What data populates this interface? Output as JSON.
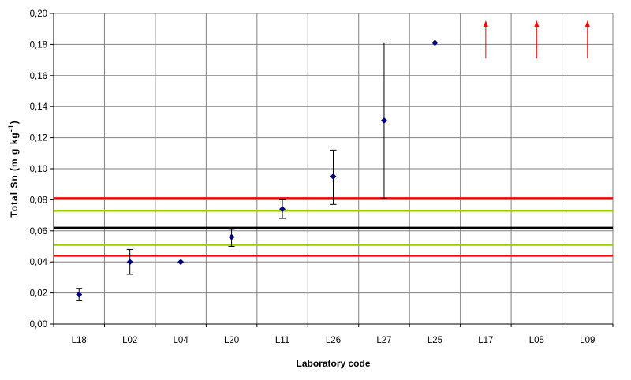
{
  "chart_data": {
    "type": "scatter",
    "xlabel": "Laboratory code",
    "ylabel": "Total Sn (m g kg",
    "ylabel_sup": "-1",
    "ylabel_close": ")",
    "ylim": [
      0,
      0.2
    ],
    "y_ticks": [
      "0,00",
      "0,02",
      "0,04",
      "0,06",
      "0,08",
      "0,10",
      "0,12",
      "0,14",
      "0,16",
      "0,18",
      "0,20"
    ],
    "y_tick_values": [
      0,
      0.02,
      0.04,
      0.06,
      0.08,
      0.1,
      0.12,
      0.14,
      0.16,
      0.18,
      0.2
    ],
    "grid": true,
    "categories": [
      "L18",
      "L02",
      "L04",
      "L20",
      "L11",
      "L26",
      "L27",
      "L25",
      "L17",
      "L05",
      "L09"
    ],
    "points": [
      {
        "lab": "L18",
        "value": 0.019,
        "low": 0.015,
        "high": 0.023
      },
      {
        "lab": "L02",
        "value": 0.04,
        "low": 0.032,
        "high": 0.048
      },
      {
        "lab": "L04",
        "value": 0.04,
        "low": null,
        "high": null
      },
      {
        "lab": "L20",
        "value": 0.056,
        "low": 0.05,
        "high": 0.061
      },
      {
        "lab": "L11",
        "value": 0.074,
        "low": 0.068,
        "high": 0.08
      },
      {
        "lab": "L26",
        "value": 0.095,
        "low": 0.077,
        "high": 0.112
      },
      {
        "lab": "L27",
        "value": 0.131,
        "low": 0.081,
        "high": 0.181
      },
      {
        "lab": "L25",
        "value": 0.181,
        "low": null,
        "high": null
      }
    ],
    "off_scale": [
      "L17",
      "L05",
      "L09"
    ],
    "reference_lines": [
      {
        "value": 0.081,
        "color": "#ff0000"
      },
      {
        "value": 0.073,
        "color": "#99cc00"
      },
      {
        "value": 0.062,
        "color": "#000000"
      },
      {
        "value": 0.051,
        "color": "#99cc00"
      },
      {
        "value": 0.044,
        "color": "#ff0000"
      }
    ],
    "marker_color": "#000080",
    "arrow_color": "#ff0000"
  }
}
